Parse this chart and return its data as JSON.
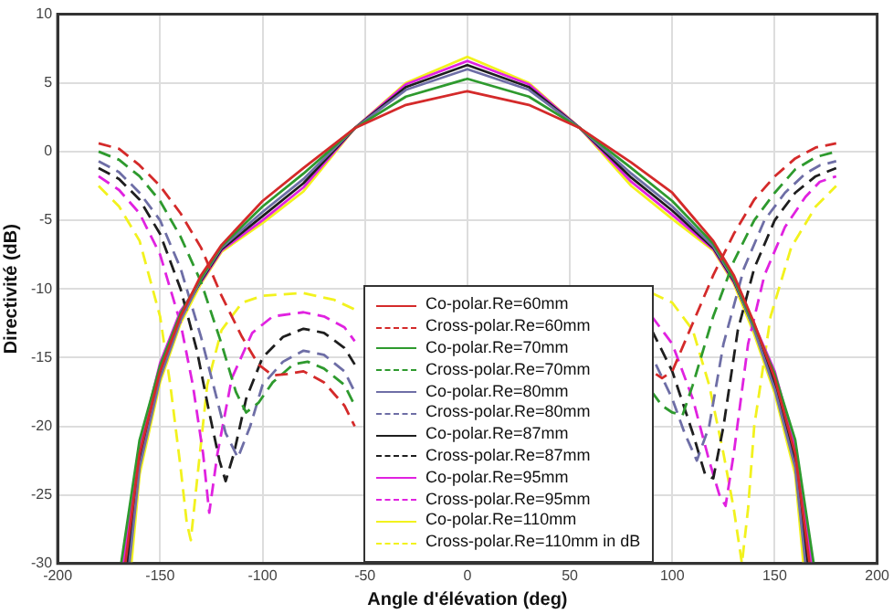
{
  "chart_data": {
    "type": "line",
    "xlabel": "Angle d'élévation (deg)",
    "ylabel": "Directivité (dB)",
    "xlim": [
      -200,
      200
    ],
    "xticks": [
      -200,
      -150,
      -100,
      -50,
      0,
      50,
      100,
      150,
      200
    ],
    "ylim": [
      -30,
      10
    ],
    "yticks": [
      -30,
      -25,
      -20,
      -15,
      -10,
      -5,
      0,
      5,
      10
    ],
    "grid": true,
    "legend": "bottom",
    "marker": "none",
    "series": [
      {
        "name": "Co-polar.Re=60mm",
        "color": "#d42a2a",
        "line_style": "solid",
        "x": [
          -167,
          -160,
          -150,
          -140,
          -130,
          -120,
          -100,
          -80,
          -55,
          -30,
          0,
          30,
          55,
          80,
          100,
          120,
          130,
          140,
          150,
          160,
          167
        ],
        "values": [
          -30,
          -22,
          -16,
          -12,
          -9,
          -6.8,
          -3.6,
          -1.2,
          1.7,
          3.4,
          4.4,
          3.4,
          1.7,
          -0.8,
          -3,
          -6.5,
          -9,
          -12.5,
          -16.5,
          -22,
          -30
        ]
      },
      {
        "name": "Cross-polar.Re=60mm",
        "color": "#d42a2a",
        "line_style": "dashed",
        "x": [
          -180,
          -170,
          -160,
          -150,
          -140,
          -130,
          -120,
          -110,
          -102,
          -95,
          -88,
          -80,
          -70,
          -60,
          -55,
          0,
          92,
          95,
          100,
          110,
          120,
          130,
          140,
          150,
          160,
          170,
          180
        ],
        "values": [
          0.6,
          0.2,
          -1,
          -2.5,
          -4.5,
          -7,
          -10.5,
          -13.5,
          -15.5,
          -16.3,
          -16.2,
          -16,
          -16.8,
          -18.5,
          -20,
          null,
          -16.2,
          -16.5,
          -16,
          -12.5,
          -9,
          -6,
          -3.5,
          -1.8,
          -0.5,
          0.3,
          0.6
        ]
      },
      {
        "name": "Co-polar.Re=70mm",
        "color": "#2e9a2e",
        "line_style": "solid",
        "x": [
          -169,
          -160,
          -150,
          -140,
          -130,
          -120,
          -100,
          -80,
          -55,
          -30,
          0,
          30,
          55,
          80,
          100,
          120,
          130,
          140,
          150,
          160,
          169
        ],
        "values": [
          -30,
          -21,
          -15.6,
          -11.8,
          -9.2,
          -6.9,
          -4,
          -1.6,
          1.7,
          4,
          5.3,
          4,
          1.7,
          -1.2,
          -3.6,
          -6.7,
          -9.2,
          -12.7,
          -16.2,
          -21,
          -30
        ]
      },
      {
        "name": "Cross-polar.Re=70mm",
        "color": "#2e9a2e",
        "line_style": "dashed",
        "x": [
          -180,
          -170,
          -160,
          -150,
          -140,
          -130,
          -120,
          -113,
          -108,
          -102,
          -95,
          -85,
          -78,
          -70,
          -60,
          -55,
          0,
          90,
          95,
          100,
          105,
          110,
          120,
          130,
          140,
          150,
          160,
          170,
          180
        ],
        "values": [
          0,
          -0.6,
          -1.8,
          -3.6,
          -6.2,
          -9.5,
          -14,
          -17.5,
          -19,
          -18.3,
          -16.8,
          -15.5,
          -15.3,
          -15.8,
          -17,
          -18.5,
          null,
          -17.5,
          -18.5,
          -19,
          -19.2,
          -17,
          -12,
          -8,
          -5,
          -3,
          -1.3,
          -0.4,
          0
        ]
      },
      {
        "name": "Co-polar.Re=80mm",
        "color": "#6e6ea6",
        "line_style": "solid",
        "x": [
          -165,
          -160,
          -150,
          -140,
          -130,
          -120,
          -100,
          -80,
          -55,
          -30,
          0,
          30,
          55,
          80,
          100,
          120,
          130,
          140,
          150,
          160,
          165
        ],
        "values": [
          -30,
          -23,
          -16.5,
          -12.3,
          -9.3,
          -7,
          -4.4,
          -2,
          1.7,
          4.5,
          6,
          4.5,
          1.7,
          -1.6,
          -4,
          -6.9,
          -9.3,
          -13,
          -17.3,
          -23,
          -30
        ]
      },
      {
        "name": "Cross-polar.Re=80mm",
        "color": "#6e6ea6",
        "line_style": "dashed",
        "x": [
          -180,
          -170,
          -160,
          -150,
          -140,
          -130,
          -124,
          -118,
          -112,
          -106,
          -100,
          -90,
          -80,
          -70,
          -60,
          -55,
          0,
          92,
          100,
          106,
          112,
          118,
          125,
          135,
          145,
          155,
          165,
          172,
          180
        ],
        "values": [
          -0.7,
          -1.5,
          -3,
          -5,
          -8.5,
          -13.5,
          -17,
          -20.5,
          -22.3,
          -20,
          -17,
          -15.3,
          -14.5,
          -14.8,
          -16,
          -17.5,
          null,
          -15.5,
          -18,
          -20.5,
          -22.5,
          -20,
          -14,
          -8.5,
          -5,
          -3,
          -1.6,
          -1,
          -0.7
        ]
      },
      {
        "name": "Co-polar.Re=87mm",
        "color": "#1e1e1e",
        "line_style": "solid",
        "x": [
          -166,
          -160,
          -150,
          -140,
          -130,
          -120,
          -100,
          -80,
          -55,
          -30,
          0,
          30,
          55,
          80,
          100,
          120,
          130,
          140,
          150,
          160,
          166
        ],
        "values": [
          -30,
          -22.5,
          -16.2,
          -12.1,
          -9.4,
          -7.1,
          -4.7,
          -2.3,
          1.7,
          4.7,
          6.3,
          4.7,
          1.7,
          -1.9,
          -4.3,
          -7,
          -9.4,
          -12.9,
          -16.9,
          -22.5,
          -30
        ]
      },
      {
        "name": "Cross-polar.Re=87mm",
        "color": "#1e1e1e",
        "line_style": "dashed",
        "x": [
          -180,
          -170,
          -160,
          -150,
          -140,
          -132,
          -126,
          -121,
          -118,
          -114,
          -108,
          -100,
          -90,
          -80,
          -70,
          -60,
          -55,
          0,
          90,
          100,
          110,
          116,
          120,
          125,
          132,
          140,
          150,
          160,
          170,
          180
        ],
        "values": [
          -1.2,
          -2,
          -3.5,
          -6,
          -10,
          -14.5,
          -19,
          -22.5,
          -24,
          -22,
          -18,
          -15,
          -13.5,
          -12.9,
          -13.2,
          -14.3,
          -15.5,
          null,
          -13,
          -16,
          -20.5,
          -23.5,
          -23.8,
          -20,
          -13,
          -8.5,
          -5,
          -3,
          -1.8,
          -1.2
        ]
      },
      {
        "name": "Co-polar.Re=95mm",
        "color": "#e022e0",
        "line_style": "solid",
        "x": [
          -168,
          -160,
          -150,
          -140,
          -130,
          -120,
          -100,
          -80,
          -55,
          -30,
          0,
          30,
          55,
          80,
          100,
          120,
          130,
          140,
          150,
          160,
          168
        ],
        "values": [
          -30,
          -21.5,
          -15.4,
          -11.6,
          -9.5,
          -7.2,
          -5,
          -2.6,
          1.7,
          4.9,
          6.6,
          4.9,
          1.7,
          -2.2,
          -4.6,
          -7.1,
          -9.5,
          -12.6,
          -16,
          -21.5,
          -30
        ]
      },
      {
        "name": "Cross-polar.Re=95mm",
        "color": "#e022e0",
        "line_style": "dashed",
        "x": [
          -180,
          -170,
          -160,
          -150,
          -140,
          -134,
          -129,
          -126,
          -122,
          -115,
          -105,
          -95,
          -80,
          -70,
          -60,
          -55,
          0,
          90,
          100,
          110,
          118,
          123,
          126,
          130,
          137,
          145,
          155,
          165,
          172,
          180
        ],
        "values": [
          -1.8,
          -2.8,
          -4.5,
          -7.5,
          -12.5,
          -17,
          -22,
          -26.3,
          -22,
          -16.5,
          -13.2,
          -12,
          -11.7,
          -12,
          -12.8,
          -13.8,
          null,
          -12,
          -14,
          -18,
          -22.5,
          -25,
          -25.8,
          -22,
          -14,
          -9,
          -5.5,
          -3.3,
          -2.2,
          -1.8
        ]
      },
      {
        "name": "Co-polar.Re=110mm",
        "color": "#f2f21e",
        "line_style": "solid",
        "x": [
          -164,
          -160,
          -150,
          -140,
          -130,
          -120,
          -100,
          -80,
          -55,
          -30,
          0,
          30,
          55,
          80,
          100,
          120,
          130,
          140,
          150,
          160,
          164
        ],
        "values": [
          -30,
          -23.5,
          -16.8,
          -12.5,
          -9.6,
          -7.3,
          -5.2,
          -2.9,
          1.7,
          5,
          6.9,
          5,
          1.7,
          -2.5,
          -4.9,
          -7.2,
          -9.6,
          -13.3,
          -17.6,
          -23.5,
          -30
        ]
      },
      {
        "name": "Cross-polar.Re=110mm in dB",
        "color": "#f2f21e",
        "line_style": "dashed",
        "x": [
          -180,
          -170,
          -160,
          -150,
          -145,
          -140,
          -137,
          -135,
          -132,
          -127,
          -120,
          -110,
          -100,
          -80,
          -65,
          -55,
          0,
          90,
          100,
          110,
          118,
          125,
          130,
          134,
          137,
          140,
          148,
          158,
          170,
          180
        ],
        "values": [
          -2.5,
          -4,
          -6.5,
          -12,
          -17,
          -23,
          -27,
          -28.3,
          -24,
          -17,
          -13,
          -11,
          -10.5,
          -10.3,
          -10.8,
          -11.5,
          null,
          -10.3,
          -11,
          -13,
          -17,
          -22,
          -26,
          -30,
          -26,
          -20,
          -12,
          -7,
          -4,
          -2.5
        ]
      }
    ]
  }
}
